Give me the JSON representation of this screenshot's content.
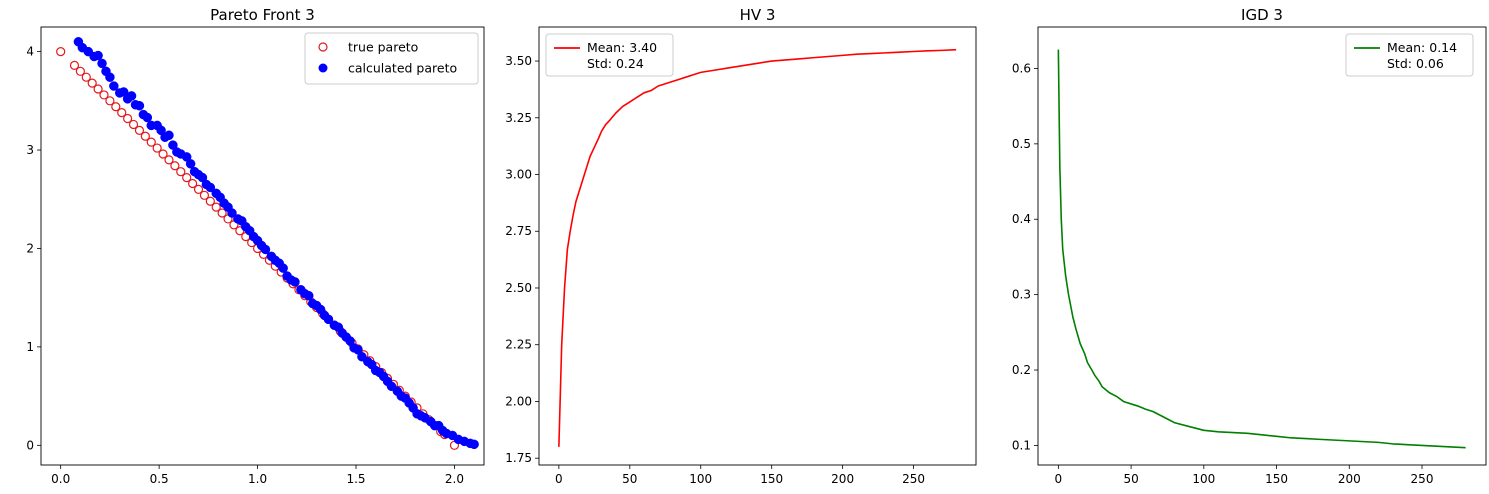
{
  "chart_data": [
    {
      "type": "scatter",
      "title": "Pareto Front 3",
      "xlabel": "",
      "ylabel": "",
      "xlim": [
        -0.1,
        2.15
      ],
      "ylim": [
        -0.2,
        4.25
      ],
      "xticks": [
        0.0,
        0.5,
        1.0,
        1.5,
        2.0
      ],
      "xtick_labels": [
        "0.0",
        "0.5",
        "1.0",
        "1.5",
        "2.0"
      ],
      "yticks": [
        0,
        1,
        2,
        3,
        4
      ],
      "ytick_labels": [
        "0",
        "1",
        "2",
        "3",
        "4"
      ],
      "grid": false,
      "legend_position": "top-right",
      "series": [
        {
          "name": "true pareto",
          "color": "#e31a1c",
          "marker": "hollow-circle",
          "points": [
            [
              0.0,
              4.0
            ],
            [
              0.07,
              3.86
            ],
            [
              0.1,
              3.8
            ],
            [
              0.13,
              3.74
            ],
            [
              0.16,
              3.68
            ],
            [
              0.19,
              3.62
            ],
            [
              0.22,
              3.56
            ],
            [
              0.25,
              3.5
            ],
            [
              0.28,
              3.44
            ],
            [
              0.31,
              3.38
            ],
            [
              0.34,
              3.32
            ],
            [
              0.37,
              3.26
            ],
            [
              0.4,
              3.2
            ],
            [
              0.43,
              3.14
            ],
            [
              0.46,
              3.08
            ],
            [
              0.49,
              3.02
            ],
            [
              0.52,
              2.96
            ],
            [
              0.55,
              2.9
            ],
            [
              0.58,
              2.84
            ],
            [
              0.61,
              2.78
            ],
            [
              0.64,
              2.72
            ],
            [
              0.67,
              2.66
            ],
            [
              0.7,
              2.6
            ],
            [
              0.73,
              2.54
            ],
            [
              0.76,
              2.48
            ],
            [
              0.79,
              2.42
            ],
            [
              0.82,
              2.36
            ],
            [
              0.85,
              2.3
            ],
            [
              0.88,
              2.24
            ],
            [
              0.91,
              2.18
            ],
            [
              0.94,
              2.12
            ],
            [
              0.97,
              2.06
            ],
            [
              1.0,
              2.0
            ],
            [
              1.03,
              1.94
            ],
            [
              1.06,
              1.88
            ],
            [
              1.09,
              1.82
            ],
            [
              1.12,
              1.76
            ],
            [
              1.15,
              1.7
            ],
            [
              1.18,
              1.64
            ],
            [
              1.21,
              1.58
            ],
            [
              1.24,
              1.52
            ],
            [
              1.27,
              1.46
            ],
            [
              1.3,
              1.4
            ],
            [
              1.33,
              1.34
            ],
            [
              1.36,
              1.28
            ],
            [
              1.39,
              1.22
            ],
            [
              1.42,
              1.16
            ],
            [
              1.45,
              1.1
            ],
            [
              1.48,
              1.04
            ],
            [
              1.51,
              0.98
            ],
            [
              1.54,
              0.92
            ],
            [
              1.57,
              0.86
            ],
            [
              1.6,
              0.8
            ],
            [
              1.63,
              0.74
            ],
            [
              1.66,
              0.68
            ],
            [
              1.69,
              0.62
            ],
            [
              1.72,
              0.56
            ],
            [
              1.75,
              0.5
            ],
            [
              1.78,
              0.44
            ],
            [
              1.81,
              0.38
            ],
            [
              1.84,
              0.32
            ],
            [
              1.87,
              0.26
            ],
            [
              1.9,
              0.2
            ],
            [
              1.93,
              0.14
            ],
            [
              1.95,
              0.11
            ],
            [
              2.0,
              0.0
            ]
          ]
        },
        {
          "name": "calculated pareto",
          "color": "#0000ff",
          "marker": "filled-circle",
          "points": [
            [
              0.09,
              4.1
            ],
            [
              0.11,
              4.04
            ],
            [
              0.14,
              4.0
            ],
            [
              0.17,
              3.95
            ],
            [
              0.19,
              3.96
            ],
            [
              0.21,
              3.88
            ],
            [
              0.23,
              3.8
            ],
            [
              0.25,
              3.74
            ],
            [
              0.27,
              3.65
            ],
            [
              0.3,
              3.58
            ],
            [
              0.32,
              3.59
            ],
            [
              0.34,
              3.52
            ],
            [
              0.36,
              3.55
            ],
            [
              0.38,
              3.46
            ],
            [
              0.4,
              3.45
            ],
            [
              0.42,
              3.36
            ],
            [
              0.44,
              3.33
            ],
            [
              0.46,
              3.25
            ],
            [
              0.49,
              3.25
            ],
            [
              0.51,
              3.2
            ],
            [
              0.53,
              3.13
            ],
            [
              0.55,
              3.15
            ],
            [
              0.57,
              3.05
            ],
            [
              0.59,
              2.98
            ],
            [
              0.61,
              2.96
            ],
            [
              0.64,
              2.93
            ],
            [
              0.66,
              2.86
            ],
            [
              0.68,
              2.78
            ],
            [
              0.7,
              2.75
            ],
            [
              0.72,
              2.72
            ],
            [
              0.74,
              2.65
            ],
            [
              0.76,
              2.62
            ],
            [
              0.79,
              2.56
            ],
            [
              0.81,
              2.52
            ],
            [
              0.83,
              2.46
            ],
            [
              0.85,
              2.42
            ],
            [
              0.87,
              2.36
            ],
            [
              0.9,
              2.3
            ],
            [
              0.92,
              2.28
            ],
            [
              0.94,
              2.22
            ],
            [
              0.96,
              2.18
            ],
            [
              0.98,
              2.12
            ],
            [
              1.0,
              2.08
            ],
            [
              1.02,
              2.03
            ],
            [
              1.04,
              1.99
            ],
            [
              1.07,
              1.92
            ],
            [
              1.09,
              1.88
            ],
            [
              1.11,
              1.85
            ],
            [
              1.13,
              1.8
            ],
            [
              1.15,
              1.72
            ],
            [
              1.17,
              1.68
            ],
            [
              1.19,
              1.66
            ],
            [
              1.22,
              1.58
            ],
            [
              1.24,
              1.54
            ],
            [
              1.26,
              1.52
            ],
            [
              1.28,
              1.44
            ],
            [
              1.3,
              1.42
            ],
            [
              1.32,
              1.38
            ],
            [
              1.34,
              1.32
            ],
            [
              1.36,
              1.28
            ],
            [
              1.39,
              1.22
            ],
            [
              1.41,
              1.2
            ],
            [
              1.43,
              1.14
            ],
            [
              1.45,
              1.1
            ],
            [
              1.47,
              1.06
            ],
            [
              1.49,
              0.99
            ],
            [
              1.51,
              0.97
            ],
            [
              1.53,
              0.9
            ],
            [
              1.56,
              0.85
            ],
            [
              1.58,
              0.82
            ],
            [
              1.6,
              0.76
            ],
            [
              1.62,
              0.74
            ],
            [
              1.64,
              0.7
            ],
            [
              1.66,
              0.65
            ],
            [
              1.68,
              0.6
            ],
            [
              1.71,
              0.55
            ],
            [
              1.73,
              0.5
            ],
            [
              1.75,
              0.48
            ],
            [
              1.77,
              0.43
            ],
            [
              1.79,
              0.38
            ],
            [
              1.81,
              0.32
            ],
            [
              1.83,
              0.3
            ],
            [
              1.85,
              0.28
            ],
            [
              1.88,
              0.24
            ],
            [
              1.9,
              0.2
            ],
            [
              1.92,
              0.2
            ],
            [
              1.94,
              0.15
            ],
            [
              1.96,
              0.12
            ],
            [
              1.99,
              0.1
            ],
            [
              2.02,
              0.06
            ],
            [
              2.05,
              0.04
            ],
            [
              2.08,
              0.02
            ],
            [
              2.1,
              0.01
            ]
          ]
        }
      ]
    },
    {
      "type": "line",
      "title": "HV 3",
      "xlabel": "",
      "ylabel": "",
      "xlim": [
        -14,
        294
      ],
      "ylim": [
        1.72,
        3.65
      ],
      "xticks": [
        0,
        50,
        100,
        150,
        200,
        250
      ],
      "xtick_labels": [
        "0",
        "50",
        "100",
        "150",
        "200",
        "250"
      ],
      "yticks": [
        1.75,
        2.0,
        2.25,
        2.5,
        2.75,
        3.0,
        3.25,
        3.5
      ],
      "ytick_labels": [
        "1.75",
        "2.00",
        "2.25",
        "2.50",
        "2.75",
        "3.00",
        "3.25",
        "3.50"
      ],
      "grid": false,
      "legend_position": "top-left",
      "legend_lines": [
        "Mean: 3.40",
        "Std: 0.24"
      ],
      "series": [
        {
          "color": "#ff0000",
          "x": [
            0,
            2,
            4,
            6,
            8,
            10,
            12,
            15,
            18,
            20,
            22,
            25,
            28,
            30,
            33,
            36,
            40,
            45,
            50,
            55,
            60,
            65,
            70,
            75,
            80,
            85,
            90,
            95,
            100,
            110,
            120,
            130,
            140,
            150,
            160,
            170,
            180,
            190,
            200,
            210,
            220,
            230,
            240,
            250,
            260,
            270,
            280
          ],
          "y": [
            1.8,
            2.25,
            2.5,
            2.67,
            2.75,
            2.82,
            2.88,
            2.94,
            3.0,
            3.04,
            3.08,
            3.12,
            3.16,
            3.19,
            3.22,
            3.24,
            3.27,
            3.3,
            3.32,
            3.34,
            3.36,
            3.37,
            3.39,
            3.4,
            3.41,
            3.42,
            3.43,
            3.44,
            3.45,
            3.46,
            3.47,
            3.48,
            3.49,
            3.5,
            3.505,
            3.51,
            3.515,
            3.52,
            3.525,
            3.53,
            3.533,
            3.536,
            3.539,
            3.542,
            3.545,
            3.547,
            3.55
          ]
        }
      ]
    },
    {
      "type": "line",
      "title": "IGD 3",
      "xlabel": "",
      "ylabel": "",
      "xlim": [
        -14,
        294
      ],
      "ylim": [
        0.074,
        0.655
      ],
      "xticks": [
        0,
        50,
        100,
        150,
        200,
        250
      ],
      "xtick_labels": [
        "0",
        "50",
        "100",
        "150",
        "200",
        "250"
      ],
      "yticks": [
        0.1,
        0.2,
        0.3,
        0.4,
        0.5,
        0.6
      ],
      "ytick_labels": [
        "0.1",
        "0.2",
        "0.3",
        "0.4",
        "0.5",
        "0.6"
      ],
      "grid": false,
      "legend_position": "top-right",
      "legend_lines": [
        "Mean: 0.14",
        "Std: 0.06"
      ],
      "series": [
        {
          "color": "#008000",
          "x": [
            0,
            1,
            2,
            3,
            5,
            7,
            10,
            12,
            15,
            18,
            20,
            23,
            25,
            28,
            30,
            35,
            40,
            45,
            50,
            55,
            60,
            65,
            70,
            75,
            80,
            90,
            100,
            110,
            120,
            130,
            140,
            150,
            160,
            170,
            180,
            190,
            200,
            210,
            220,
            230,
            240,
            250,
            260,
            270,
            280
          ],
          "y": [
            0.625,
            0.47,
            0.4,
            0.36,
            0.325,
            0.3,
            0.27,
            0.255,
            0.235,
            0.222,
            0.21,
            0.2,
            0.193,
            0.185,
            0.178,
            0.17,
            0.165,
            0.158,
            0.155,
            0.152,
            0.148,
            0.145,
            0.14,
            0.135,
            0.13,
            0.125,
            0.12,
            0.118,
            0.117,
            0.116,
            0.114,
            0.112,
            0.11,
            0.109,
            0.108,
            0.107,
            0.106,
            0.105,
            0.104,
            0.102,
            0.101,
            0.1,
            0.099,
            0.098,
            0.097
          ]
        }
      ]
    }
  ]
}
